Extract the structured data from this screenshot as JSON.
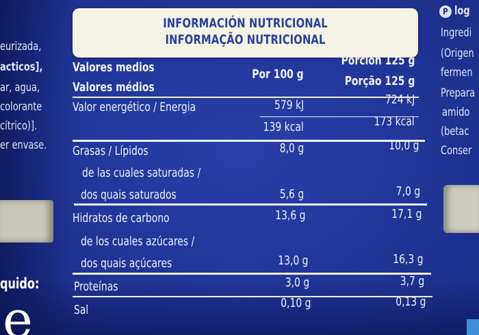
{
  "title": {
    "es": "INFORMACIÓN NUTRICIONAL",
    "pt": "INFORMAÇÃO NUTRICIONAL"
  },
  "header": {
    "valores_es": "Valores medios",
    "valores_pt": "Valores médios",
    "per100": "Por 100 g",
    "porcion_es": "Porción 125 g",
    "porcion_pt": "Porção 125 g"
  },
  "rows": {
    "energia_label": "Valor energético / Energia",
    "energia_kj_100": "579 kJ",
    "energia_kj_125": "724 kJ",
    "energia_kcal_100": "139 kcal",
    "energia_kcal_125": "173 kcal",
    "grasas_label": "Grasas / Lípidos",
    "grasas_100": "8,0 g",
    "grasas_125": "10,0 g",
    "sat_label_1": "de las cuales saturadas /",
    "sat_label_2": "dos quais saturados",
    "sat_100": "5,6 g",
    "sat_125": "7,0 g",
    "hidratos_label": "Hidratos de carbono",
    "hidratos_100": "13,6 g",
    "hidratos_125": "17,1 g",
    "azucares_label_1": "de los cuales azúcares /",
    "azucares_label_2": "dos quais açúcares",
    "azucares_100": "13,0 g",
    "azucares_125": "16,3 g",
    "proteinas_label": "Proteínas",
    "proteinas_100": "3,0 g",
    "proteinas_125": "3,7 g",
    "sal_label": "Sal",
    "sal_100": "0,10 g",
    "sal_125": "0,13 g"
  },
  "left_fragments": {
    "l1": "eurizada,",
    "l2": "acticos],",
    "l3": "ar, agua,",
    "l4": "colorante",
    "l5": "cítrico)].",
    "l6": "er envase.",
    "l7": "quido:",
    "l8": "e"
  },
  "right_fragments": {
    "logo": "P",
    "r0": "log",
    "r1": "Ingredi",
    "r2": "(Origen",
    "r3": "fermen",
    "r4": "Prepara",
    "r5": "amido",
    "r6": "(betac",
    "r7": "Conser"
  }
}
